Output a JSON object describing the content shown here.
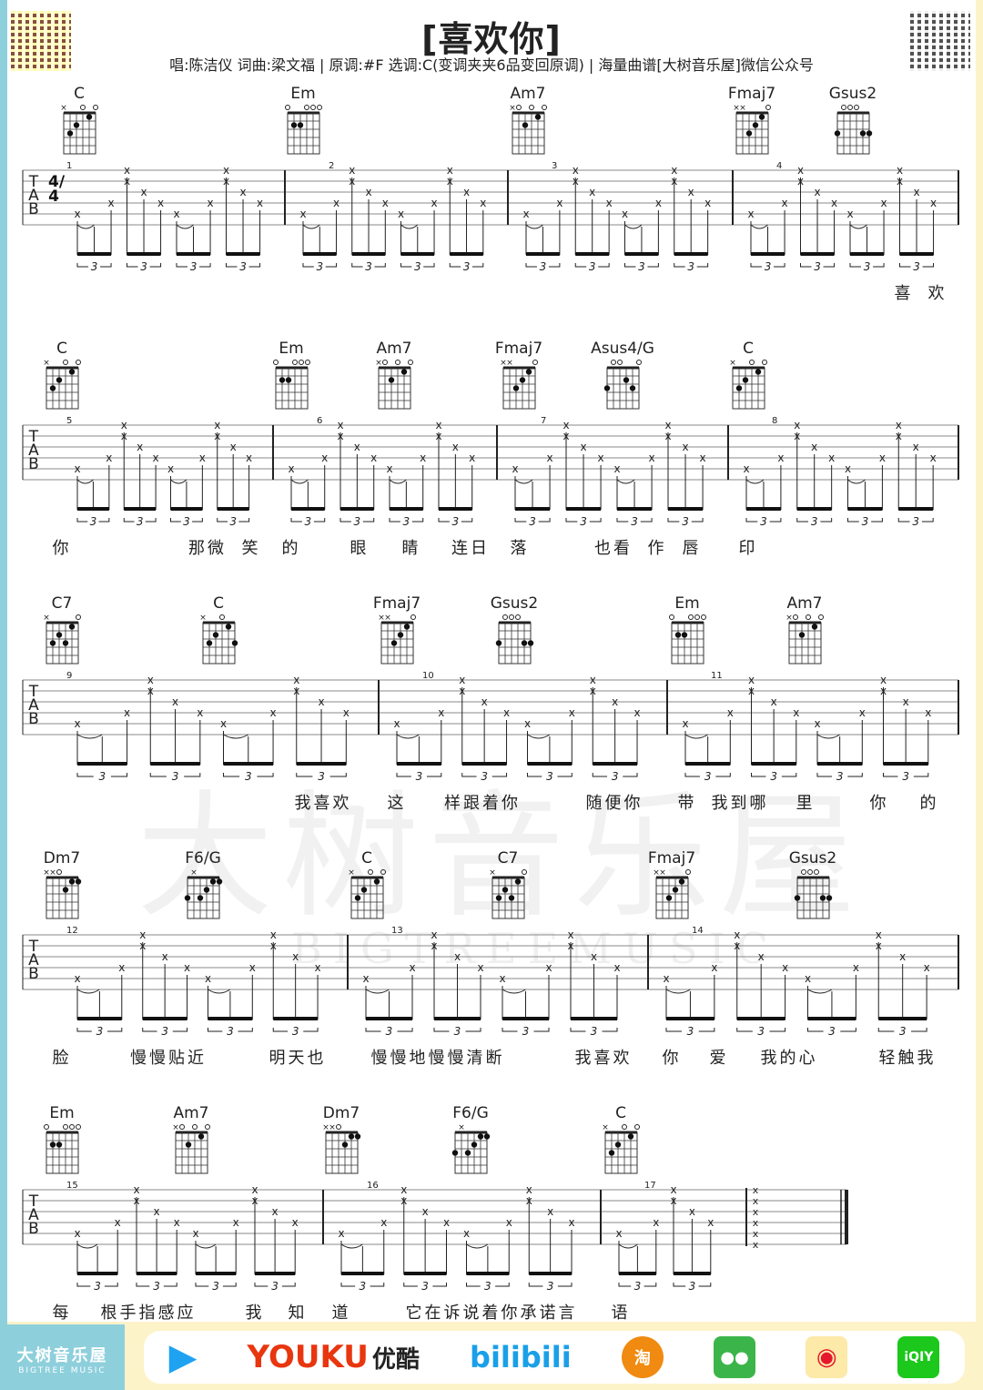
{
  "header": {
    "title": "[喜欢你]",
    "subtitle": "唱:陈洁仪  词曲:梁文福 | 原调:#F  选调:C(变调夹夹6品变回原调) | 海量曲谱[大树音乐屋]微信公众号"
  },
  "tab_labels": [
    "T",
    "A",
    "B"
  ],
  "time_signature": "4/4",
  "triplet_label": "3",
  "watermark": {
    "text": "大树音乐屋",
    "sub": "BIGTREEMUSIC"
  },
  "systems": [
    {
      "measures": [
        "1",
        "2",
        "3",
        "4"
      ],
      "chords": [
        {
          "name": "C",
          "frets": "x32010"
        },
        {
          "name": "Em",
          "frets": "022000"
        },
        {
          "name": "Am7",
          "frets": "x02010"
        },
        {
          "name": "Fmaj7",
          "frets": "xx3210"
        },
        {
          "name": "Gsus2",
          "frets": "300033"
        }
      ],
      "lyrics": [
        "喜",
        "欢"
      ]
    },
    {
      "measures": [
        "5",
        "6",
        "7",
        "8"
      ],
      "chords": [
        {
          "name": "C",
          "frets": "x32010"
        },
        {
          "name": "Em",
          "frets": "022000"
        },
        {
          "name": "Am7",
          "frets": "x02010"
        },
        {
          "name": "Fmaj7",
          "frets": "xx3210"
        },
        {
          "name": "Asus4/G",
          "frets": "300230"
        },
        {
          "name": "C",
          "frets": "x32010"
        }
      ],
      "lyrics": [
        "你",
        "那微",
        "笑",
        "的",
        "眼",
        "睛",
        "连日",
        "落",
        "也看",
        "作",
        "唇",
        "印"
      ]
    },
    {
      "measures": [
        "9",
        "10",
        "11"
      ],
      "chords": [
        {
          "name": "C7",
          "frets": "x32310"
        },
        {
          "name": "C",
          "frets": "x32013"
        },
        {
          "name": "Fmaj7",
          "frets": "xx3210"
        },
        {
          "name": "Gsus2",
          "frets": "300033"
        },
        {
          "name": "Em",
          "frets": "022000"
        },
        {
          "name": "Am7",
          "frets": "x02010"
        }
      ],
      "lyrics": [
        "我喜欢",
        "这",
        "样跟着你",
        "随便你",
        "带",
        "我到哪",
        "里",
        "你",
        "的"
      ]
    },
    {
      "measures": [
        "12",
        "13",
        "14"
      ],
      "chords": [
        {
          "name": "Dm7",
          "frets": "xx0211"
        },
        {
          "name": "F6/G",
          "frets": "3x3211"
        },
        {
          "name": "C",
          "frets": "x32010"
        },
        {
          "name": "C7",
          "frets": "x32310"
        },
        {
          "name": "Fmaj7",
          "frets": "xx3210"
        },
        {
          "name": "Gsus2",
          "frets": "300033"
        }
      ],
      "lyrics": [
        "脸",
        "慢慢贴近",
        "明天也",
        "慢慢地慢慢清断",
        "我喜欢",
        "你",
        "爱",
        "我的心",
        "轻触我"
      ]
    },
    {
      "measures": [
        "15",
        "16",
        "17"
      ],
      "chords": [
        {
          "name": "Em",
          "frets": "022000"
        },
        {
          "name": "Am7",
          "frets": "x02010"
        },
        {
          "name": "Dm7",
          "frets": "xx0211"
        },
        {
          "name": "F6/G",
          "frets": "3x3211"
        },
        {
          "name": "C",
          "frets": "x32010"
        }
      ],
      "lyrics": [
        "每",
        "根手指感应",
        "我",
        "知",
        "道",
        "它在诉说着你承诺言",
        "语"
      ]
    }
  ],
  "footer": {
    "brand": "大树音乐屋",
    "brand_sub": "BIGTREE MUSIC",
    "platforms": [
      {
        "name": "tencent-video",
        "label": "▶",
        "color": "#1fa3f0"
      },
      {
        "name": "youku",
        "label": "YOUKU",
        "label2": "优酷",
        "color": "#e8360f",
        "color2": "#1a9df0"
      },
      {
        "name": "bilibili",
        "label": "bilibili",
        "color": "#1aa0e8"
      },
      {
        "name": "taobao",
        "label": "淘",
        "color": "#f08a10"
      },
      {
        "name": "wechat",
        "label": "●●",
        "color": "#3bb54a"
      },
      {
        "name": "weibo",
        "label": "◉",
        "color": "#e6162d"
      },
      {
        "name": "iqiyi",
        "label": "iQIY",
        "color": "#1bc81b"
      }
    ]
  },
  "colors": {
    "left_strip": "#8ecfdc",
    "background": "#fdf3c8",
    "ink": "#222222"
  }
}
